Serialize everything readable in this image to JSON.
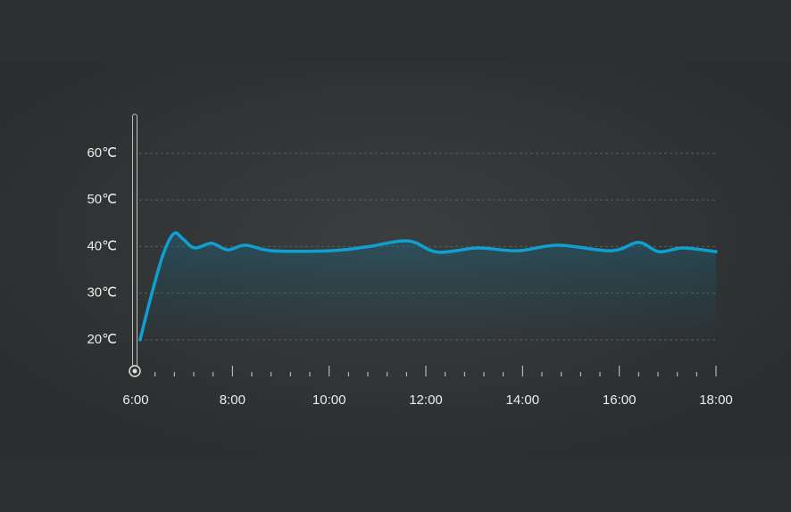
{
  "chart_data": {
    "type": "line",
    "xlim": [
      6,
      18
    ],
    "xticks": [
      {
        "value": 6,
        "label": "6:00"
      },
      {
        "value": 8,
        "label": "8:00"
      },
      {
        "value": 10,
        "label": "10:00"
      },
      {
        "value": 12,
        "label": "12:00"
      },
      {
        "value": 14,
        "label": "14:00"
      },
      {
        "value": 16,
        "label": "16:00"
      },
      {
        "value": 18,
        "label": "18:00"
      }
    ],
    "xminorticks": [
      6.4,
      6.8,
      7.2,
      7.6,
      8.4,
      8.8,
      9.2,
      9.6,
      10.4,
      10.8,
      11.2,
      11.6,
      12.4,
      12.8,
      13.2,
      13.6,
      14.4,
      14.8,
      15.2,
      15.6,
      16.4,
      16.8,
      17.2,
      17.6
    ],
    "ylim": [
      13.3,
      68
    ],
    "yticks": [
      {
        "value": 20,
        "label": "20℃"
      },
      {
        "value": 30,
        "label": "30℃"
      },
      {
        "value": 40,
        "label": "40℃"
      },
      {
        "value": 50,
        "label": "50℃"
      },
      {
        "value": 60,
        "label": "60℃"
      }
    ],
    "grid": true,
    "color": "#0fa0d0",
    "x": [
      6.09,
      6.33,
      6.57,
      6.79,
      6.98,
      7.22,
      7.57,
      7.9,
      8.27,
      8.82,
      10.02,
      10.76,
      11.63,
      12.24,
      13.07,
      13.9,
      14.73,
      15.84,
      16.4,
      16.82,
      17.32,
      18
    ],
    "values": [
      20,
      29.8,
      38.4,
      42.8,
      41.6,
      39.7,
      40.7,
      39.3,
      40.3,
      39.1,
      39.1,
      39.9,
      41.2,
      38.8,
      39.7,
      39.1,
      40.3,
      39.1,
      40.9,
      38.9,
      39.7,
      38.9
    ]
  }
}
